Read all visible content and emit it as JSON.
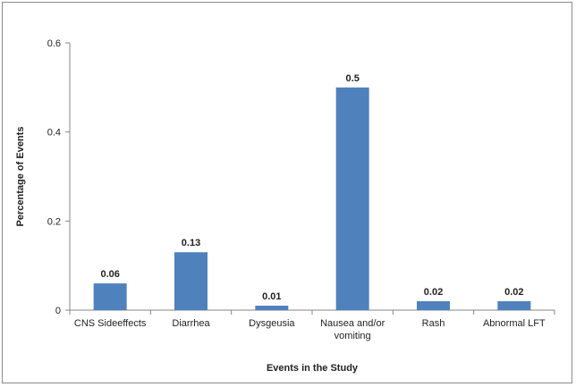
{
  "chart_data": {
    "type": "bar",
    "title": "",
    "xlabel": "Events in the Study",
    "ylabel": "Percentage of Events",
    "categories": [
      [
        "CNS Sideeffects"
      ],
      [
        "Diarrhea"
      ],
      [
        "Dysgeusia"
      ],
      [
        "Nausea and/or",
        "vomiting"
      ],
      [
        "Rash"
      ],
      [
        "Abnormal LFT"
      ]
    ],
    "values": [
      0.06,
      0.13,
      0.01,
      0.5,
      0.02,
      0.02
    ],
    "data_labels": [
      "0.06",
      "0.13",
      "0.01",
      "0.5",
      "0.02",
      "0.02"
    ],
    "yticks": [
      0,
      0.2,
      0.4,
      0.6
    ],
    "ytick_labels": [
      "0",
      "0.2",
      "0.4",
      "0.6"
    ],
    "ylim": [
      0,
      0.6
    ],
    "grid": false,
    "legend": "none",
    "bar_color": "#4f81bd",
    "axis_color": "#868686"
  }
}
